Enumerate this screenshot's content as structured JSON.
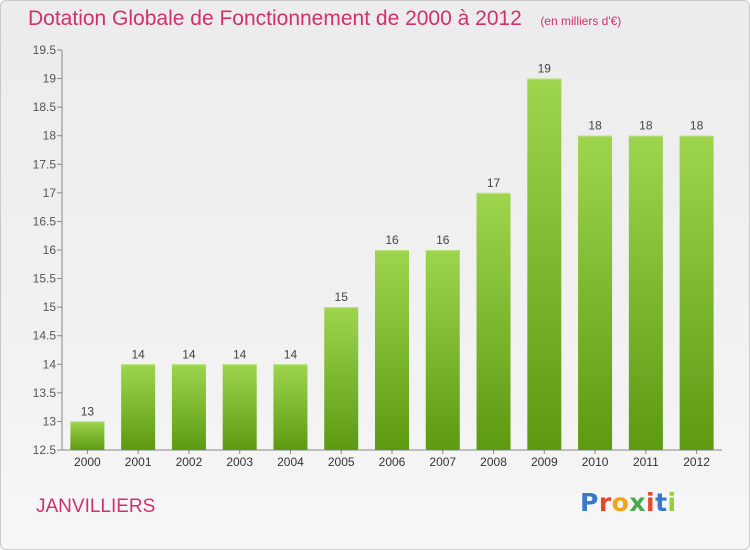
{
  "title": "Dotation Globale de Fonctionnement de 2000 à 2012",
  "unit_note": "(en milliers d'€)",
  "commune": "JANVILLIERS",
  "logo": {
    "letters": [
      "P",
      "r",
      "o",
      "x",
      "i",
      "t",
      "i"
    ],
    "colors": [
      "#3a78c9",
      "#e8452c",
      "#f3a21a",
      "#4aa84a",
      "#e8452c",
      "#3a78c9",
      "#9acb3c"
    ]
  },
  "colors": {
    "bar_top": "#9ed54f",
    "bar_bottom": "#5c9a12",
    "title": "#d0306e"
  },
  "chart_data": {
    "type": "bar",
    "title": "Dotation Globale de Fonctionnement de 2000 à 2012",
    "subtitle": "(en milliers d'€)",
    "categories": [
      "2000",
      "2001",
      "2002",
      "2003",
      "2004",
      "2005",
      "2006",
      "2007",
      "2008",
      "2009",
      "2010",
      "2011",
      "2012"
    ],
    "values": [
      13,
      14,
      14,
      14,
      14,
      15,
      16,
      16,
      17,
      19,
      18,
      18,
      18
    ],
    "data_labels": [
      "13",
      "14",
      "14",
      "14",
      "14",
      "15",
      "16",
      "16",
      "17",
      "19",
      "18",
      "18",
      "18"
    ],
    "ylim": [
      12.5,
      19.5
    ],
    "yticks": [
      12.5,
      13,
      13.5,
      14,
      14.5,
      15,
      15.5,
      16,
      16.5,
      17,
      17.5,
      18,
      18.5,
      19,
      19.5
    ],
    "ytick_labels": [
      "12.5",
      "13",
      "13.5",
      "14",
      "14.5",
      "15",
      "15.5",
      "16",
      "16.5",
      "17",
      "17.5",
      "18",
      "18.5",
      "19",
      "19.5"
    ],
    "grid": false
  }
}
